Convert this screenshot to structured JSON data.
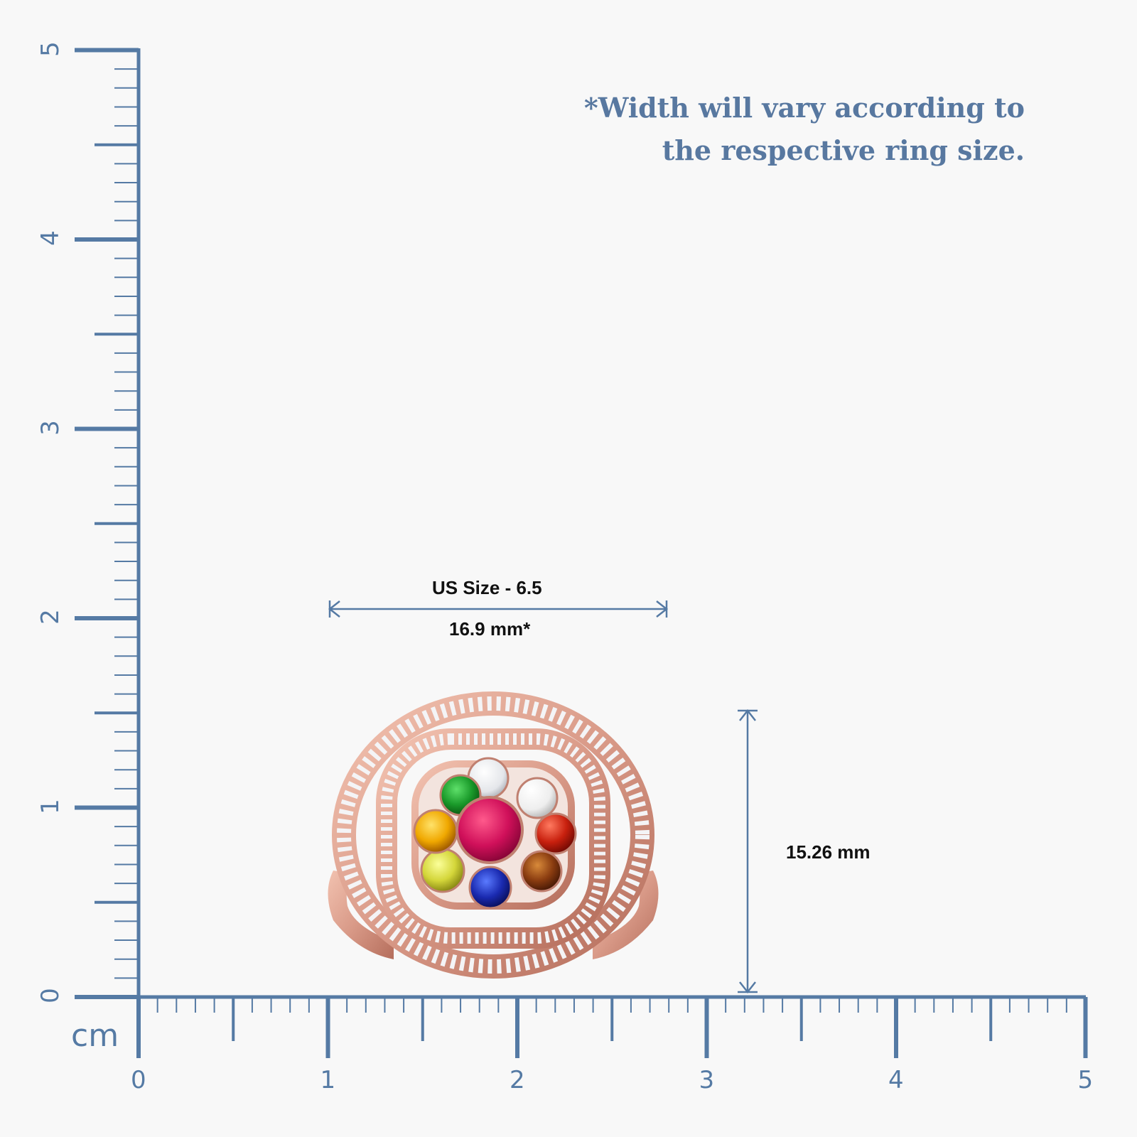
{
  "note": {
    "line1": "*Width will vary according to",
    "line2": "the respective ring size."
  },
  "width_dimension": {
    "size_label": "US Size - 6.5",
    "value_label": "16.9 mm*"
  },
  "height_dimension": {
    "value_label": "15.26 mm"
  },
  "ruler": {
    "unit": "cm",
    "x_labels": [
      "0",
      "1",
      "2",
      "3",
      "4",
      "5"
    ],
    "y_labels": [
      "0",
      "1",
      "2",
      "3",
      "4",
      "5"
    ],
    "color": "#557aa4"
  },
  "ring": {
    "metal": "rose gold",
    "center_stone": "ruby",
    "surrounding_stones": [
      "diamond",
      "pearl",
      "coral",
      "garnet",
      "blue sapphire",
      "cat's eye",
      "yellow sapphire",
      "emerald"
    ]
  }
}
